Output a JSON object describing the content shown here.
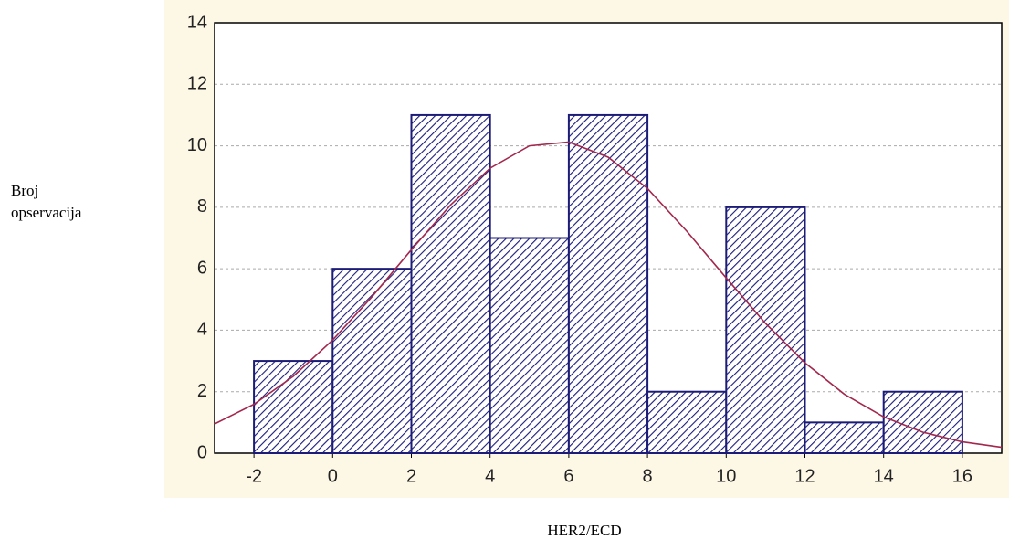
{
  "chart_data": {
    "type": "histogram",
    "xlabel": "HER2/ECD",
    "ylabel": "Broj opservacija",
    "bins": [
      -2,
      0,
      2,
      4,
      6,
      8,
      10,
      12,
      14,
      16
    ],
    "values": [
      3,
      6,
      11,
      7,
      11,
      2,
      8,
      1,
      2
    ],
    "color": "#1c1c78",
    "curve": {
      "color": "#a3284e",
      "x": [
        -3,
        -2,
        -1,
        0,
        1,
        2,
        3,
        4,
        5,
        6,
        7,
        8,
        9,
        10,
        11,
        12,
        13,
        14,
        15,
        16,
        17
      ],
      "values": [
        0.95,
        1.59,
        2.5,
        3.68,
        5.09,
        6.62,
        8.08,
        9.27,
        10.0,
        10.12,
        9.63,
        8.61,
        7.22,
        5.7,
        4.22,
        2.94,
        1.92,
        1.18,
        0.68,
        0.37,
        0.19
      ]
    },
    "xlim": [
      -3,
      17
    ],
    "xticks": [
      -2,
      0,
      2,
      4,
      6,
      8,
      10,
      12,
      14,
      16
    ],
    "ylim": [
      0,
      14
    ],
    "yticks": [
      0,
      2,
      4,
      6,
      8,
      10,
      12,
      14
    ],
    "grid": true
  }
}
